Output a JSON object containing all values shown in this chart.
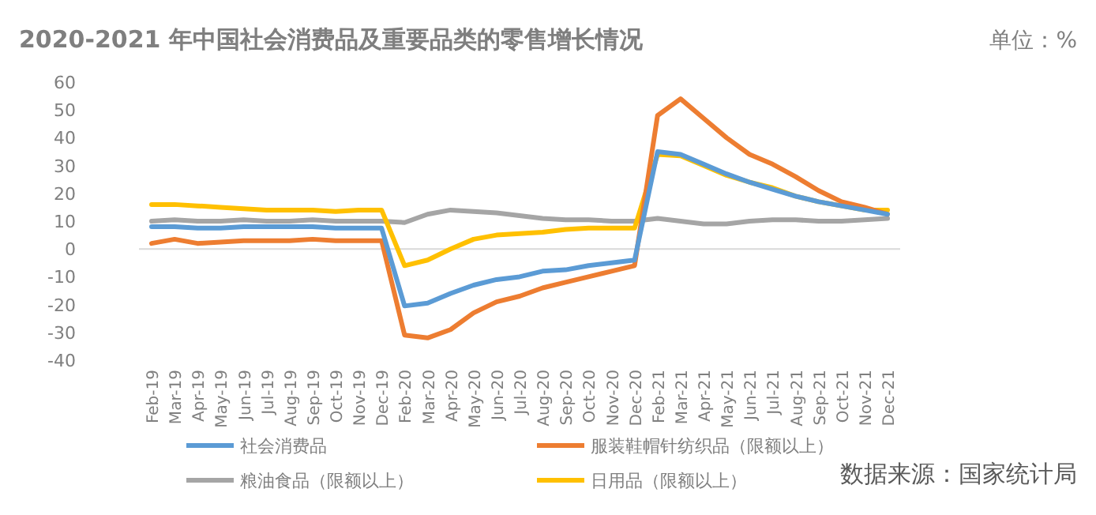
{
  "chart_data": {
    "type": "line",
    "title": "2020-2021 年中国社会消费品及重要品类的零售增长情况",
    "annotations": [
      "单位：%",
      "数据来源：国家统计局"
    ],
    "categories": [
      "Feb-19",
      "Mar-19",
      "Apr-19",
      "May-19",
      "Jun-19",
      "Jul-19",
      "Aug-19",
      "Sep-19",
      "Oct-19",
      "Nov-19",
      "Dec-19",
      "Feb-20",
      "Mar-20",
      "Apr-20",
      "May-20",
      "Jun-20",
      "Jul-20",
      "Aug-20",
      "Sep-20",
      "Oct-20",
      "Nov-20",
      "Dec-20",
      "Feb-21",
      "Mar-21",
      "Apr-21",
      "May-21",
      "Jun-21",
      "Jul-21",
      "Aug-21",
      "Sep-21",
      "Oct-21",
      "Nov-21",
      "Dec-21"
    ],
    "series": [
      {
        "name": "社会消费品",
        "color": "#5b9bd5",
        "values": [
          8,
          8,
          7.5,
          7.5,
          8,
          8,
          8,
          8,
          7.5,
          7.5,
          7.5,
          -20.5,
          -19.5,
          -16,
          -13,
          -11,
          -10,
          -8,
          -7.5,
          -6,
          -5,
          -4,
          35,
          34,
          30.5,
          27,
          24,
          21.5,
          19,
          17,
          15.5,
          14,
          12.5
        ]
      },
      {
        "name": "服装鞋帽针纺织品（限额以上）",
        "color": "#ed7d31",
        "values": [
          2,
          3.5,
          2,
          2.5,
          3,
          3,
          3,
          3.5,
          3,
          3,
          3,
          -31,
          -32,
          -29,
          -23,
          -19,
          -17,
          -14,
          -12,
          -10,
          -8,
          -6,
          48,
          54,
          47,
          40,
          34,
          30.5,
          26,
          21,
          17,
          15,
          12.5
        ]
      },
      {
        "name": "粮油食品（限额以上）",
        "color": "#a5a5a5",
        "values": [
          10,
          10.5,
          10,
          10,
          10.5,
          10,
          10,
          10.5,
          10,
          10,
          10,
          9.5,
          12.5,
          14,
          13.5,
          13,
          12,
          11,
          10.5,
          10.5,
          10,
          10,
          11,
          10,
          9,
          9,
          10,
          10.5,
          10.5,
          10,
          10,
          10.5,
          11
        ]
      },
      {
        "name": "日用品（限额以上）",
        "color": "#ffc000",
        "values": [
          16,
          16,
          15.5,
          15,
          14.5,
          14,
          14,
          14,
          13.5,
          14,
          14,
          -6,
          -4,
          0,
          3.5,
          5,
          5.5,
          6,
          7,
          7.5,
          7.5,
          7.5,
          34,
          33.5,
          30,
          26.5,
          24,
          22,
          19,
          17,
          15.5,
          14,
          14
        ]
      }
    ],
    "ylim": [
      -40,
      60
    ],
    "yticks": [
      -40,
      -30,
      -20,
      -10,
      0,
      10,
      20,
      30,
      40,
      50,
      60
    ],
    "grid": false,
    "ref_lines": [
      {
        "axis": "y",
        "value": 0,
        "color": "#d9d9d9"
      }
    ],
    "legend": "bottom",
    "marker": "none",
    "line_style": "solid"
  }
}
